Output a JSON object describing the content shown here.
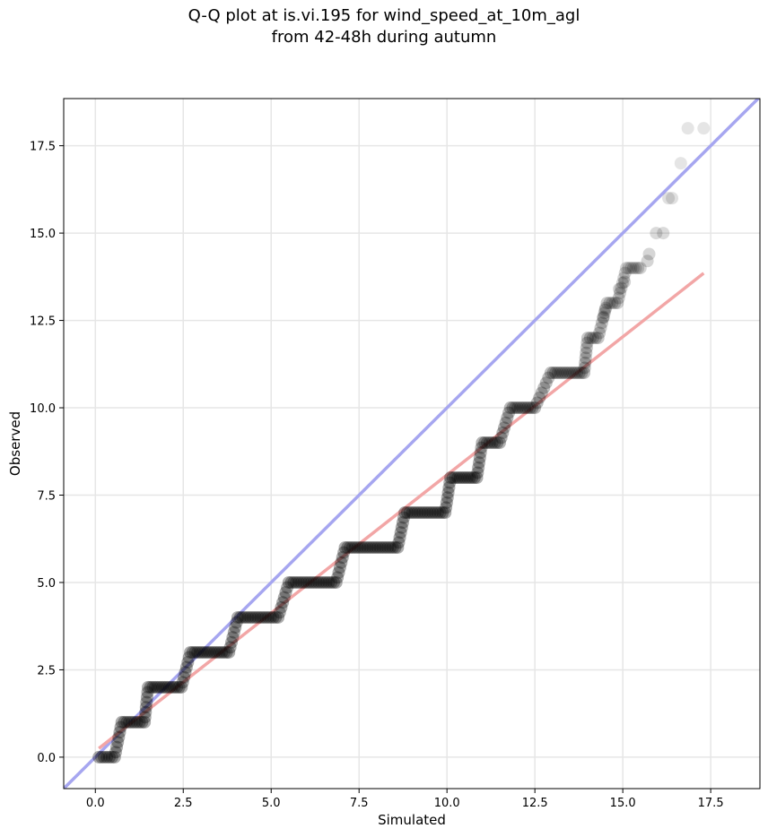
{
  "chart_data": {
    "type": "scatter",
    "title_line1": "Q-Q plot at is.vi.195 for wind_speed_at_10m_agl",
    "title_line2": "from 42-48h during autumn",
    "xlabel": "Simulated",
    "ylabel": "Observed",
    "xlim": [
      -0.9,
      18.9
    ],
    "ylim": [
      -0.9,
      18.85
    ],
    "xticks": [
      0.0,
      2.5,
      5.0,
      7.5,
      10.0,
      12.5,
      15.0,
      17.5
    ],
    "xtick_labels": [
      "0.0",
      "2.5",
      "5.0",
      "7.5",
      "10.0",
      "12.5",
      "15.0",
      "17.5"
    ],
    "yticks": [
      0.0,
      2.5,
      5.0,
      7.5,
      10.0,
      12.5,
      15.0,
      17.5
    ],
    "ytick_labels": [
      "0.0",
      "2.5",
      "5.0",
      "7.5",
      "10.0",
      "12.5",
      "15.0",
      "17.5"
    ],
    "grid": true,
    "colors": {
      "points": "#000000",
      "identity_line": "#a6a6f0",
      "fit_line": "#f2a6a6",
      "grid": "#e6e6e6"
    },
    "identity_line": {
      "x": [
        -0.9,
        18.9
      ],
      "y": [
        -0.9,
        18.9
      ]
    },
    "fit_line": {
      "x": [
        0.1,
        17.3
      ],
      "y": [
        0.25,
        13.85
      ]
    },
    "quantile_steps": [
      {
        "observed": 0,
        "x_start": 0.1,
        "x_end": 0.55
      },
      {
        "observed": 1,
        "x_start": 0.75,
        "x_end": 1.4
      },
      {
        "observed": 2,
        "x_start": 1.5,
        "x_end": 2.45
      },
      {
        "observed": 3,
        "x_start": 2.7,
        "x_end": 3.8
      },
      {
        "observed": 4,
        "x_start": 4.05,
        "x_end": 5.2
      },
      {
        "observed": 5,
        "x_start": 5.5,
        "x_end": 6.85
      },
      {
        "observed": 6,
        "x_start": 7.1,
        "x_end": 8.6
      },
      {
        "observed": 7,
        "x_start": 8.8,
        "x_end": 9.95
      },
      {
        "observed": 8,
        "x_start": 10.1,
        "x_end": 10.85
      },
      {
        "observed": 9,
        "x_start": 11.0,
        "x_end": 11.5
      },
      {
        "observed": 10,
        "x_start": 11.8,
        "x_end": 12.5
      },
      {
        "observed": 11,
        "x_start": 12.95,
        "x_end": 13.9
      },
      {
        "observed": 12,
        "x_start": 14.0,
        "x_end": 14.3
      },
      {
        "observed": 13,
        "x_start": 14.55,
        "x_end": 14.85
      },
      {
        "observed": 14,
        "x_start": 15.1,
        "x_end": 15.5
      }
    ],
    "tail_points": [
      {
        "x": 14.45,
        "y": 12.6
      },
      {
        "x": 14.5,
        "y": 12.8
      },
      {
        "x": 14.9,
        "y": 13.4
      },
      {
        "x": 15.05,
        "y": 13.6
      },
      {
        "x": 15.7,
        "y": 14.2
      },
      {
        "x": 15.75,
        "y": 14.4
      },
      {
        "x": 15.95,
        "y": 15.0
      },
      {
        "x": 16.15,
        "y": 15.0
      },
      {
        "x": 16.3,
        "y": 16.0
      },
      {
        "x": 16.4,
        "y": 16.0
      },
      {
        "x": 16.65,
        "y": 17.0
      },
      {
        "x": 16.85,
        "y": 18.0
      },
      {
        "x": 17.3,
        "y": 18.0
      }
    ]
  }
}
